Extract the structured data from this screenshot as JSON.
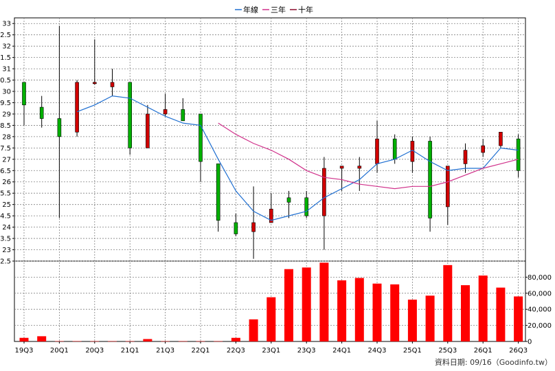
{
  "chart_data": {
    "type": "candlestick+bar",
    "legend": {
      "placement": "top-center",
      "items": [
        {
          "label": "年線",
          "color": "#1f6fd1"
        },
        {
          "label": "三年",
          "color": "#d0308a"
        },
        {
          "label": "十年",
          "color": "#8b0b2c"
        }
      ]
    },
    "colors": {
      "up": "#d10000",
      "down": "#00b000",
      "volume": "#ff0000",
      "grid": "#808080"
    },
    "price_axis": {
      "ylim": [
        22.5,
        33.25
      ],
      "ticks": [
        "22.5",
        "23",
        "23.5",
        "24",
        "24.5",
        "25",
        "25.5",
        "26",
        "26.5",
        "27",
        "27.5",
        "28",
        "28.5",
        "29",
        "29.5",
        "30",
        "30.5",
        "31",
        "31.5",
        "32",
        "32.5",
        "33"
      ],
      "position": "left"
    },
    "volume_axis": {
      "ylim": [
        0,
        100000
      ],
      "ticks": [
        "0",
        "20,000",
        "40,000",
        "60,000",
        "80,000"
      ],
      "position": "right"
    },
    "x_labels": [
      "19Q3",
      "20Q1",
      "20Q3",
      "21Q1",
      "21Q3",
      "22Q1",
      "22Q3",
      "23Q1",
      "23Q3",
      "24Q1",
      "24Q3",
      "25Q1",
      "25Q3",
      "26Q1",
      "26Q3"
    ],
    "candles": [
      {
        "q": "19Q3",
        "o": 30.4,
        "h": 30.4,
        "l": 28.5,
        "c": 29.4
      },
      {
        "q": "19Q4",
        "o": 29.3,
        "h": 29.8,
        "l": 28.4,
        "c": 28.8
      },
      {
        "q": "20Q1",
        "o": 28.8,
        "h": 32.9,
        "l": 24.4,
        "c": 28.0
      },
      {
        "q": "20Q2",
        "o": 28.2,
        "h": 30.5,
        "l": 28.0,
        "c": 30.4
      },
      {
        "q": "20Q3",
        "o": 30.4,
        "h": 32.3,
        "l": 30.3,
        "c": 30.4
      },
      {
        "q": "20Q4",
        "o": 30.2,
        "h": 31.0,
        "l": 29.8,
        "c": 30.4
      },
      {
        "q": "21Q1",
        "o": 30.4,
        "h": 30.4,
        "l": 27.2,
        "c": 27.5
      },
      {
        "q": "21Q2",
        "o": 27.5,
        "h": 29.4,
        "l": 27.5,
        "c": 29.0
      },
      {
        "q": "21Q3",
        "o": 29.0,
        "h": 29.9,
        "l": 28.9,
        "c": 29.2
      },
      {
        "q": "21Q4",
        "o": 29.2,
        "h": 29.7,
        "l": 28.7,
        "c": 28.7
      },
      {
        "q": "22Q1",
        "o": 29.0,
        "h": 29.0,
        "l": 26.0,
        "c": 26.9
      },
      {
        "q": "22Q2",
        "o": 26.8,
        "h": 26.8,
        "l": 23.8,
        "c": 24.3
      },
      {
        "q": "22Q3",
        "o": 24.2,
        "h": 24.6,
        "l": 23.6,
        "c": 23.7
      },
      {
        "q": "22Q4",
        "o": 23.8,
        "h": 25.8,
        "l": 22.6,
        "c": 24.2
      },
      {
        "q": "23Q1",
        "o": 24.2,
        "h": 25.5,
        "l": 24.2,
        "c": 24.8
      },
      {
        "q": "23Q2",
        "o": 25.3,
        "h": 25.6,
        "l": 24.4,
        "c": 25.1
      },
      {
        "q": "23Q3",
        "o": 25.3,
        "h": 25.6,
        "l": 24.4,
        "c": 24.5
      },
      {
        "q": "23Q4",
        "o": 24.5,
        "h": 27.1,
        "l": 23.0,
        "c": 26.6
      },
      {
        "q": "24Q1",
        "o": 26.6,
        "h": 26.7,
        "l": 25.6,
        "c": 26.7
      },
      {
        "q": "24Q2",
        "o": 26.6,
        "h": 27.1,
        "l": 25.6,
        "c": 26.7
      },
      {
        "q": "24Q3",
        "o": 26.8,
        "h": 28.7,
        "l": 26.4,
        "c": 27.9
      },
      {
        "q": "24Q4",
        "o": 27.9,
        "h": 28.1,
        "l": 26.8,
        "c": 27.0
      },
      {
        "q": "25Q1",
        "o": 26.9,
        "h": 28.0,
        "l": 26.4,
        "c": 27.8
      },
      {
        "q": "25Q2",
        "o": 27.8,
        "h": 28.0,
        "l": 23.8,
        "c": 24.4
      },
      {
        "q": "25Q3",
        "o": 24.9,
        "h": 26.7,
        "l": 24.1,
        "c": 26.7
      },
      {
        "q": "25Q4",
        "o": 26.8,
        "h": 27.7,
        "l": 26.4,
        "c": 27.4
      },
      {
        "q": "26Q1",
        "o": 27.3,
        "h": 27.9,
        "l": 27.1,
        "c": 27.6
      },
      {
        "q": "26Q2",
        "o": 27.6,
        "h": 28.2,
        "l": 27.5,
        "c": 28.2
      },
      {
        "q": "26Q3",
        "o": 27.9,
        "h": 28.1,
        "l": 26.2,
        "c": 26.5
      }
    ],
    "series": [
      {
        "name": "年線",
        "color": "#1f6fd1",
        "points": [
          {
            "q": "20Q2",
            "v": 29.1
          },
          {
            "q": "20Q3",
            "v": 29.4
          },
          {
            "q": "20Q4",
            "v": 29.8
          },
          {
            "q": "21Q1",
            "v": 29.7
          },
          {
            "q": "21Q2",
            "v": 29.3
          },
          {
            "q": "21Q3",
            "v": 28.9
          },
          {
            "q": "21Q4",
            "v": 28.6
          },
          {
            "q": "22Q1",
            "v": 28.5
          },
          {
            "q": "22Q2",
            "v": 27.0
          },
          {
            "q": "22Q3",
            "v": 25.6
          },
          {
            "q": "22Q4",
            "v": 24.7
          },
          {
            "q": "23Q1",
            "v": 24.3
          },
          {
            "q": "23Q2",
            "v": 24.5
          },
          {
            "q": "23Q3",
            "v": 24.7
          },
          {
            "q": "23Q4",
            "v": 25.3
          },
          {
            "q": "24Q1",
            "v": 25.7
          },
          {
            "q": "24Q2",
            "v": 26.1
          },
          {
            "q": "24Q3",
            "v": 26.8
          },
          {
            "q": "24Q4",
            "v": 27.0
          },
          {
            "q": "25Q1",
            "v": 27.4
          },
          {
            "q": "25Q2",
            "v": 26.9
          },
          {
            "q": "25Q3",
            "v": 26.5
          },
          {
            "q": "25Q4",
            "v": 26.6
          },
          {
            "q": "26Q1",
            "v": 26.6
          },
          {
            "q": "26Q2",
            "v": 27.5
          },
          {
            "q": "26Q3",
            "v": 27.4
          }
        ]
      },
      {
        "name": "三年",
        "color": "#d0308a",
        "points": [
          {
            "q": "22Q2",
            "v": 28.6
          },
          {
            "q": "22Q3",
            "v": 28.1
          },
          {
            "q": "22Q4",
            "v": 27.7
          },
          {
            "q": "23Q1",
            "v": 27.4
          },
          {
            "q": "23Q2",
            "v": 27.0
          },
          {
            "q": "23Q3",
            "v": 26.5
          },
          {
            "q": "23Q4",
            "v": 26.2
          },
          {
            "q": "24Q1",
            "v": 26.1
          },
          {
            "q": "24Q2",
            "v": 25.9
          },
          {
            "q": "24Q3",
            "v": 25.8
          },
          {
            "q": "24Q4",
            "v": 25.7
          },
          {
            "q": "25Q1",
            "v": 25.8
          },
          {
            "q": "25Q2",
            "v": 25.8
          },
          {
            "q": "25Q3",
            "v": 26.0
          },
          {
            "q": "25Q4",
            "v": 26.3
          },
          {
            "q": "26Q1",
            "v": 26.6
          },
          {
            "q": "26Q2",
            "v": 26.8
          },
          {
            "q": "26Q3",
            "v": 27.0
          }
        ]
      }
    ],
    "volume": [
      {
        "q": "19Q3",
        "v": 4500
      },
      {
        "q": "19Q4",
        "v": 6500
      },
      {
        "q": "20Q1",
        "v": 400
      },
      {
        "q": "20Q2",
        "v": 400
      },
      {
        "q": "20Q3",
        "v": 300
      },
      {
        "q": "20Q4",
        "v": 300
      },
      {
        "q": "21Q1",
        "v": 300
      },
      {
        "q": "21Q2",
        "v": 3000
      },
      {
        "q": "21Q3",
        "v": 300
      },
      {
        "q": "21Q4",
        "v": 300
      },
      {
        "q": "22Q1",
        "v": 300
      },
      {
        "q": "22Q2",
        "v": 300
      },
      {
        "q": "22Q3",
        "v": 4500
      },
      {
        "q": "22Q4",
        "v": 27500
      },
      {
        "q": "23Q1",
        "v": 55000
      },
      {
        "q": "23Q2",
        "v": 90000
      },
      {
        "q": "23Q3",
        "v": 92000
      },
      {
        "q": "23Q4",
        "v": 98000
      },
      {
        "q": "24Q1",
        "v": 76000
      },
      {
        "q": "24Q2",
        "v": 79000
      },
      {
        "q": "24Q3",
        "v": 72000
      },
      {
        "q": "24Q4",
        "v": 71000
      },
      {
        "q": "25Q1",
        "v": 52000
      },
      {
        "q": "25Q2",
        "v": 57000
      },
      {
        "q": "25Q3",
        "v": 95000
      },
      {
        "q": "25Q4",
        "v": 70000
      },
      {
        "q": "26Q1",
        "v": 82000
      },
      {
        "q": "26Q2",
        "v": 67000
      },
      {
        "q": "26Q3",
        "v": 56000
      }
    ],
    "grid": true
  },
  "credit": "資料日期: 09/16（Goodinfo.tw）"
}
